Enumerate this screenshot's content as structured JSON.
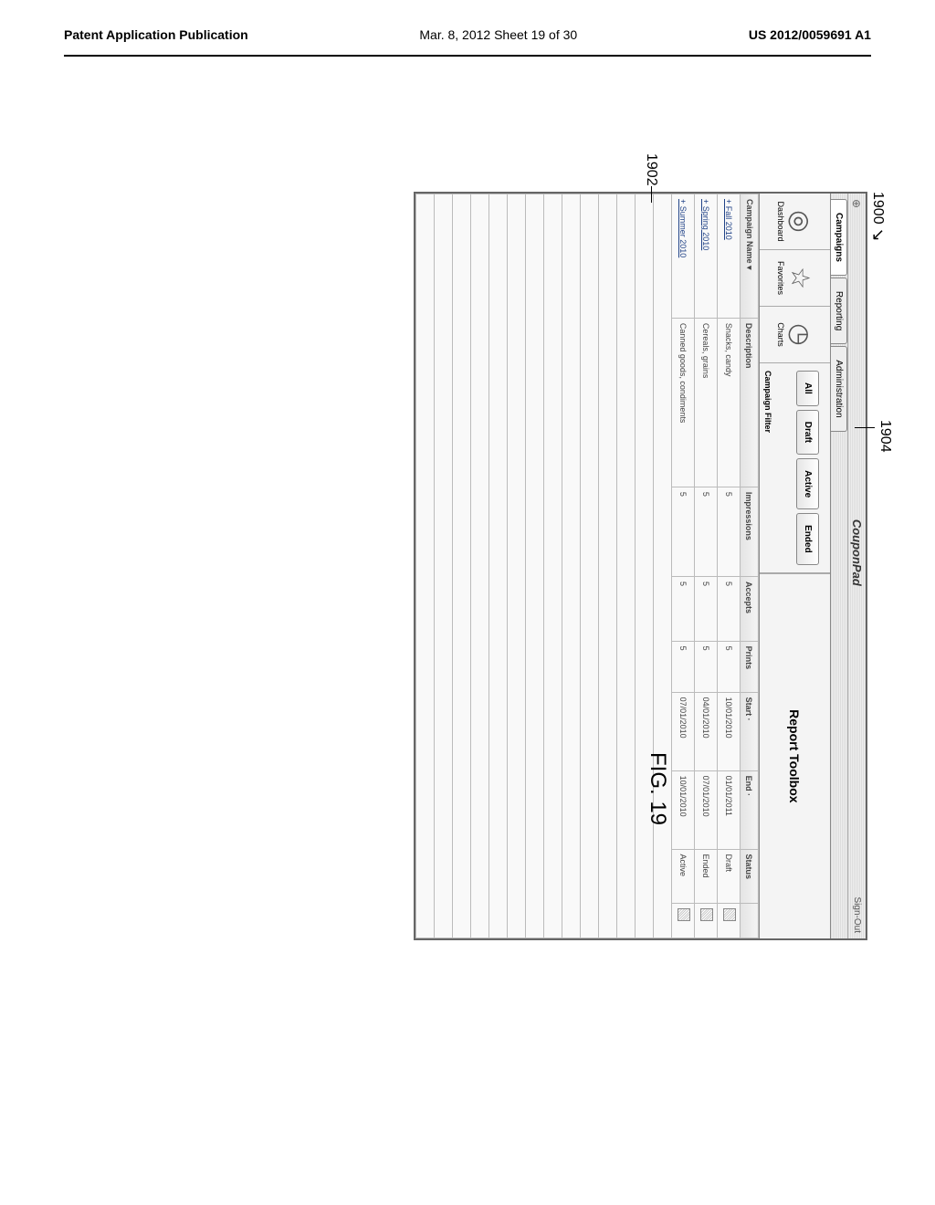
{
  "header": {
    "left": "Patent Application Publication",
    "center": "Mar. 8, 2012  Sheet 19 of 30",
    "right": "US 2012/0059691 A1"
  },
  "refs": {
    "r1900": "1900",
    "r1904": "1904",
    "r1902": "1902"
  },
  "brand": "CouponPad",
  "signout": "Sign-Out",
  "tabs": {
    "campaigns": "Campaigns",
    "reporting": "Reporting",
    "administration": "Administration"
  },
  "toolbar": {
    "dashboard": "Dashboard",
    "favorites": "Favorites",
    "charts": "Charts",
    "filter_caption": "Campaign Filter",
    "filters": {
      "all": "All",
      "draft": "Draft",
      "active": "Active",
      "ended": "Ended"
    },
    "report_toolbox": "Report Toolbox"
  },
  "table": {
    "headers": {
      "name": "Campaign Name",
      "desc": "Description",
      "impr": "Impressions",
      "acc": "Accepts",
      "prints": "Prints",
      "start": "Start",
      "end": "End",
      "status": "Status",
      "action": ""
    },
    "rows": [
      {
        "name": "Fall 2010",
        "desc": "Snacks, candy",
        "impr": "5",
        "acc": "5",
        "prints": "5",
        "start": "10/01/2010",
        "end": "01/01/2011",
        "status": "Draft"
      },
      {
        "name": "Spring 2010",
        "desc": "Cereals, grains",
        "impr": "5",
        "acc": "5",
        "prints": "5",
        "start": "04/01/2010",
        "end": "07/01/2010",
        "status": "Ended"
      },
      {
        "name": "Summer 2010",
        "desc": "Canned goods, condiments",
        "impr": "5",
        "acc": "5",
        "prints": "5",
        "start": "07/01/2010",
        "end": "10/01/2010",
        "status": "Active"
      }
    ]
  },
  "figure_caption": "FIG. 19"
}
